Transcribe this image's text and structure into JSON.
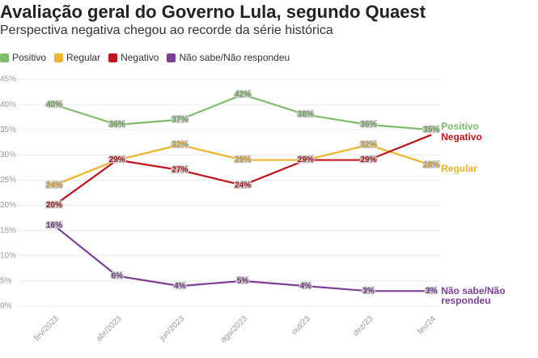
{
  "chart_data": {
    "type": "line",
    "title": "Avaliação geral do Governo Lula, segundo Quaest",
    "subtitle": "Perspectiva negativa chegou ao recorde da série histórica",
    "categories": [
      "fev/2023",
      "abr/2023",
      "jun/2023",
      "ago/2023",
      "out/23",
      "dez/23",
      "fev/24"
    ],
    "series": [
      {
        "name": "Positivo",
        "color": "#7dbd68",
        "values": [
          40,
          36,
          37,
          42,
          38,
          36,
          35
        ],
        "value_labels": [
          "40%",
          "36%",
          "37%",
          "42%",
          "38%",
          "36%",
          "35%"
        ]
      },
      {
        "name": "Regular",
        "color": "#efb428",
        "values": [
          24,
          29,
          32,
          29,
          29,
          32,
          28
        ],
        "value_labels": [
          "24%",
          "29%",
          "32%",
          "29%",
          "29%",
          "32%",
          "28%"
        ]
      },
      {
        "name": "Negativo",
        "color": "#c0161b",
        "values": [
          20,
          29,
          27,
          24,
          29,
          29,
          34
        ],
        "value_labels": [
          "20%",
          "29%",
          "27%",
          "24%",
          "29%",
          "29%",
          null
        ]
      },
      {
        "name": "Não sabe/Não respondeu",
        "color": "#7d3f97",
        "values": [
          16,
          6,
          4,
          5,
          4,
          3,
          3
        ],
        "value_labels": [
          "16%",
          "6%",
          "4%",
          "5%",
          "4%",
          "3%",
          "3%"
        ]
      }
    ],
    "ylim": [
      0,
      45
    ],
    "yticks": [
      {
        "value": 0,
        "label": "0%"
      },
      {
        "value": 5,
        "label": "5%"
      },
      {
        "value": 10,
        "label": "10%"
      },
      {
        "value": 15,
        "label": "15%"
      },
      {
        "value": 20,
        "label": "20%"
      },
      {
        "value": 25,
        "label": "25%"
      },
      {
        "value": 30,
        "label": "30%"
      },
      {
        "value": 35,
        "label": "35%"
      },
      {
        "value": 40,
        "label": "40%"
      },
      {
        "value": 45,
        "label": "45%"
      }
    ],
    "grid": true
  }
}
